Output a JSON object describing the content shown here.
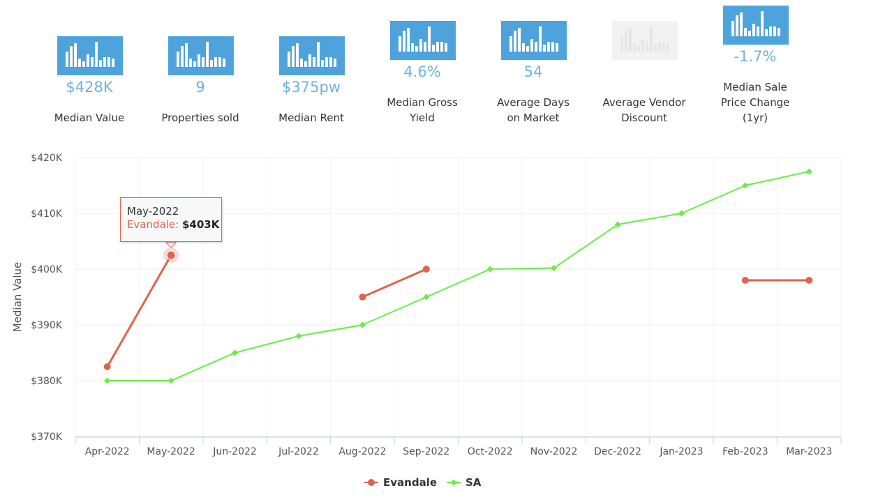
{
  "stats": [
    {
      "value": "$428K",
      "label_lines": [
        "Median Value"
      ],
      "disabled": false
    },
    {
      "value": "9",
      "label_lines": [
        "Properties sold"
      ],
      "disabled": false
    },
    {
      "value": "$375pw",
      "label_lines": [
        "Median Rent"
      ],
      "disabled": false
    },
    {
      "value": "4.6%",
      "label_lines": [
        "Median Gross",
        "Yield"
      ],
      "disabled": false
    },
    {
      "value": "54",
      "label_lines": [
        "Average Days",
        "on Market"
      ],
      "disabled": false
    },
    {
      "value": "",
      "label_lines": [
        "Average Vendor",
        "Discount"
      ],
      "disabled": true
    },
    {
      "value": "-1.7%",
      "label_lines": [
        "Median Sale",
        "Price Change",
        "(1yr)"
      ],
      "disabled": false
    }
  ],
  "chart_data": {
    "type": "line",
    "ylabel": "Median Value",
    "xlabel": "",
    "categories": [
      "Apr-2022",
      "May-2022",
      "Jun-2022",
      "Jul-2022",
      "Aug-2022",
      "Sep-2022",
      "Oct-2022",
      "Nov-2022",
      "Dec-2022",
      "Jan-2023",
      "Feb-2023",
      "Mar-2023"
    ],
    "ylim": [
      370000,
      420000
    ],
    "yticks": [
      370000,
      380000,
      390000,
      400000,
      410000,
      420000
    ],
    "ytick_labels": [
      "$370K",
      "$380K",
      "$390K",
      "$400K",
      "$410K",
      "$420K"
    ],
    "grid": true,
    "legend_position": "bottom-center",
    "series": [
      {
        "name": "Evandale",
        "color": "#e0634a",
        "marker": "circle",
        "values": [
          382500,
          402500,
          null,
          null,
          395000,
          400000,
          null,
          null,
          null,
          null,
          398000,
          398000
        ]
      },
      {
        "name": "SA",
        "color": "#66ee44",
        "marker": "diamond",
        "values": [
          380000,
          380000,
          385000,
          388000,
          390000,
          395000,
          400000,
          400200,
          408000,
          410000,
          415000,
          417500
        ]
      }
    ],
    "tooltip": {
      "category": "May-2022",
      "series": "Evandale",
      "value": "$403K"
    }
  }
}
